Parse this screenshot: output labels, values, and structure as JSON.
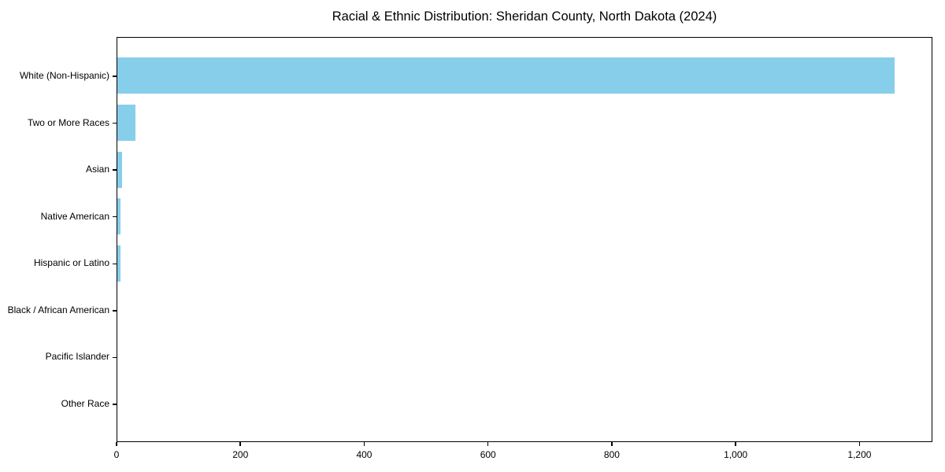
{
  "chart_data": {
    "type": "bar",
    "orientation": "horizontal",
    "title": "Racial & Ethnic Distribution: Sheridan County, North Dakota (2024)",
    "categories": [
      "White (Non-Hispanic)",
      "Two or More Races",
      "Asian",
      "Native American",
      "Hispanic or Latino",
      "Black / African American",
      "Pacific Islander",
      "Other Race"
    ],
    "values": [
      1255,
      29,
      8,
      5,
      5,
      0,
      0,
      0
    ],
    "bar_color": "#87CEEB",
    "xlabel": "",
    "ylabel": "",
    "xlim": [
      0,
      1317.75
    ],
    "x_ticks": {
      "values": [
        0,
        200,
        400,
        600,
        800,
        1000,
        1200
      ],
      "labels": [
        "0",
        "200",
        "400",
        "600",
        "800",
        "1,000",
        "1,200"
      ]
    },
    "grid": false,
    "legend": null,
    "background": "#ffffff",
    "text_color": "#000000",
    "frame": true
  }
}
